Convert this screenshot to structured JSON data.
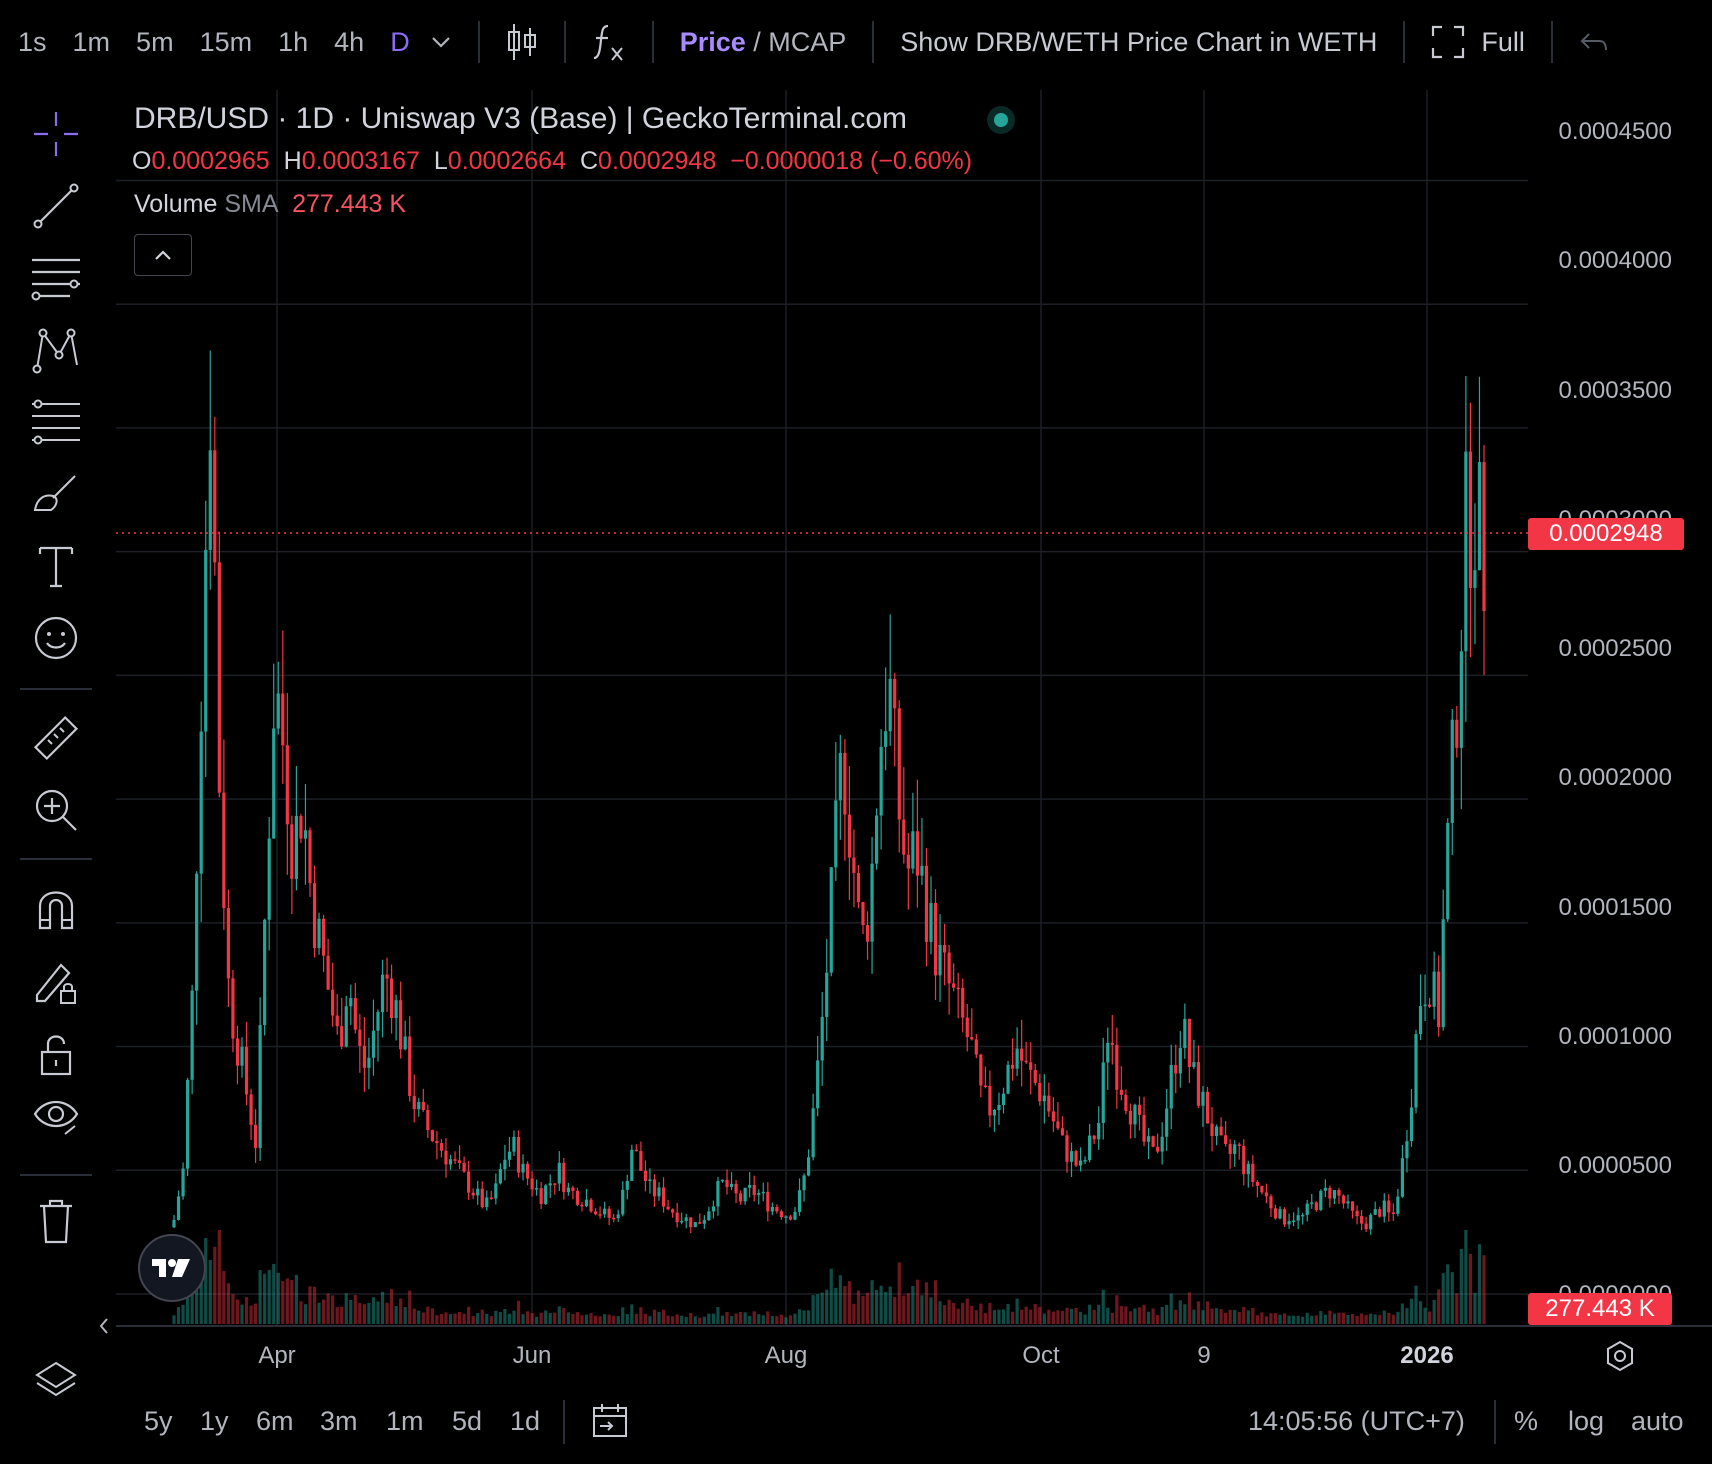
{
  "toolbar": {
    "timeframes": [
      "1s",
      "1m",
      "5m",
      "15m",
      "1h",
      "4h",
      "D"
    ],
    "active_timeframe": "D",
    "price_label": "Price",
    "slash": " / ",
    "mcap_label": "MCAP",
    "weth_label": "Show DRB/WETH Price Chart in WETH",
    "full_label": "Full"
  },
  "legend": {
    "title": "DRB/USD · 1D · Uniswap V3 (Base) | GeckoTerminal.com",
    "open_key": "O",
    "open": "0.0002965",
    "high_key": "H",
    "high": "0.0003167",
    "low_key": "L",
    "low": "0.0002664",
    "close_key": "C",
    "close": "0.0002948",
    "change": "−0.0000018 (−0.60%)",
    "volume_label": "Volume",
    "sma_label": "SMA",
    "volume_value": "277.443 K"
  },
  "price_axis": {
    "labels": [
      "0.0004500",
      "0.0004000",
      "0.0003500",
      "0.0003000",
      "0.0002500",
      "0.0002000",
      "0.0001500",
      "0.0001000",
      "0.0000500",
      "0.0000000"
    ],
    "current_price_tag": "0.0002948",
    "volume_tag": "277.443 K"
  },
  "time_axis": {
    "labels": [
      "Apr",
      "Jun",
      "Aug",
      "Oct",
      "9",
      "2026"
    ]
  },
  "bottom": {
    "ranges": [
      "5y",
      "1y",
      "6m",
      "3m",
      "1m",
      "5d",
      "1d"
    ],
    "clock": "14:05:56 (UTC+7)",
    "percent": "%",
    "log": "log",
    "auto": "auto"
  },
  "colors": {
    "up": "#26a69a",
    "down": "#f23645",
    "accent": "#8c6cf2",
    "grid": "#1c1f26",
    "background": "#000000"
  },
  "chart_data": {
    "type": "candlestick",
    "title": "DRB/USD · 1D · Uniswap V3 (Base) | GeckoTerminal.com",
    "ylim": [
      0,
      0.00047
    ],
    "y_ticks": [
      0.00045,
      0.0004,
      0.00035,
      0.0003,
      0.00025,
      0.0002,
      0.00015,
      0.0001,
      5e-05,
      0
    ],
    "x_ticks": [
      "Apr",
      "Jun",
      "Aug",
      "Oct",
      "9",
      "2026"
    ],
    "last_close": 0.0002948,
    "approx_close_series": [
      3e-05,
      5e-05,
      0.00012,
      0.00025,
      0.00037,
      0.0002,
      0.00012,
      0.0001,
      8e-05,
      6e-05,
      0.00016,
      0.00025,
      0.00022,
      0.00018,
      0.0002,
      0.00016,
      0.00014,
      0.00012,
      0.0001,
      0.00013,
      0.0001,
      9e-05,
      0.00011,
      0.00013,
      0.00012,
      0.0001,
      8e-05,
      7e-05,
      6.5e-05,
      6e-05,
      5.5e-05,
      5e-05,
      4.5e-05,
      4e-05,
      3.5e-05,
      4e-05,
      5.5e-05,
      6e-05,
      5e-05,
      4.5e-05,
      4e-05,
      4.5e-05,
      5e-05,
      4.2e-05,
      4e-05,
      3.8e-05,
      3.5e-05,
      3.2e-05,
      3e-05,
      4e-05,
      6e-05,
      5e-05,
      4.2e-05,
      4e-05,
      3.5e-05,
      3.2e-05,
      3e-05,
      2.8e-05,
      3.2e-05,
      4e-05,
      4.5e-05,
      4e-05,
      3.8e-05,
      4.2e-05,
      4e-05,
      3.6e-05,
      3.4e-05,
      3.2e-05,
      3.5e-05,
      5e-05,
      8e-05,
      0.00012,
      0.00017,
      0.00022,
      0.00018,
      0.00014,
      0.00016,
      0.00022,
      0.00025,
      0.0002,
      0.00017,
      0.00018,
      0.00016,
      0.00014,
      0.00013,
      0.00012,
      0.00011,
      0.0001,
      8e-05,
      7.5e-05,
      8e-05,
      9e-05,
      0.0001,
      9e-05,
      8.5e-05,
      8e-05,
      7e-05,
      6e-05,
      5.5e-05,
      5e-05,
      6e-05,
      7e-05,
      0.00011,
      9e-05,
      8e-05,
      7e-05,
      6e-05,
      5.5e-05,
      7e-05,
      9e-05,
      0.00011,
      9e-05,
      8e-05,
      7e-05,
      6e-05,
      5.5e-05,
      6e-05,
      5e-05,
      4.5e-05,
      4e-05,
      3.5e-05,
      3e-05,
      3.2e-05,
      3e-05,
      3.5e-05,
      3.8e-05,
      4.2e-05,
      4e-05,
      3.5e-05,
      3e-05,
      2.8e-05,
      3.2e-05,
      3.5e-05,
      3e-05,
      5e-05,
      8e-05,
      0.00012,
      0.00013,
      0.00011,
      0.00018,
      0.00024,
      0.00031,
      0.00032,
      0.000295
    ]
  }
}
